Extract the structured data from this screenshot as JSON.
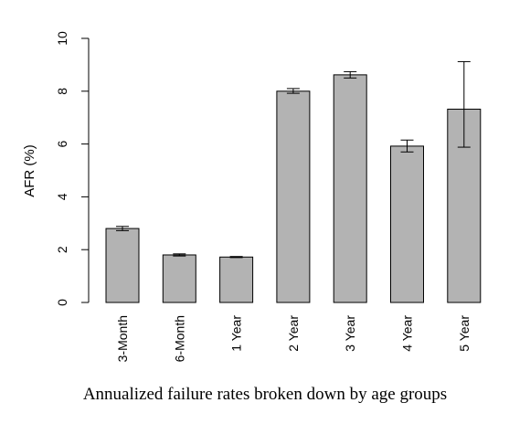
{
  "chart_data": {
    "type": "bar",
    "categories": [
      "3-Month",
      "6-Month",
      "1 Year",
      "2 Year",
      "3 Year",
      "4 Year",
      "5 Year"
    ],
    "values": [
      2.8,
      1.8,
      1.72,
      8.0,
      8.62,
      5.92,
      7.32
    ],
    "error_low": [
      2.72,
      1.76,
      1.7,
      7.92,
      8.5,
      5.7,
      5.88
    ],
    "error_high": [
      2.88,
      1.84,
      1.74,
      8.1,
      8.74,
      6.15,
      9.12
    ],
    "xlabel": "Annualized failure rates broken down by age groups",
    "ylabel": "AFR (%)",
    "ylim": [
      0,
      10
    ],
    "yticks": [
      0,
      2,
      4,
      6,
      8,
      10
    ],
    "bar_color": "#b3b3b3",
    "grid": false
  }
}
